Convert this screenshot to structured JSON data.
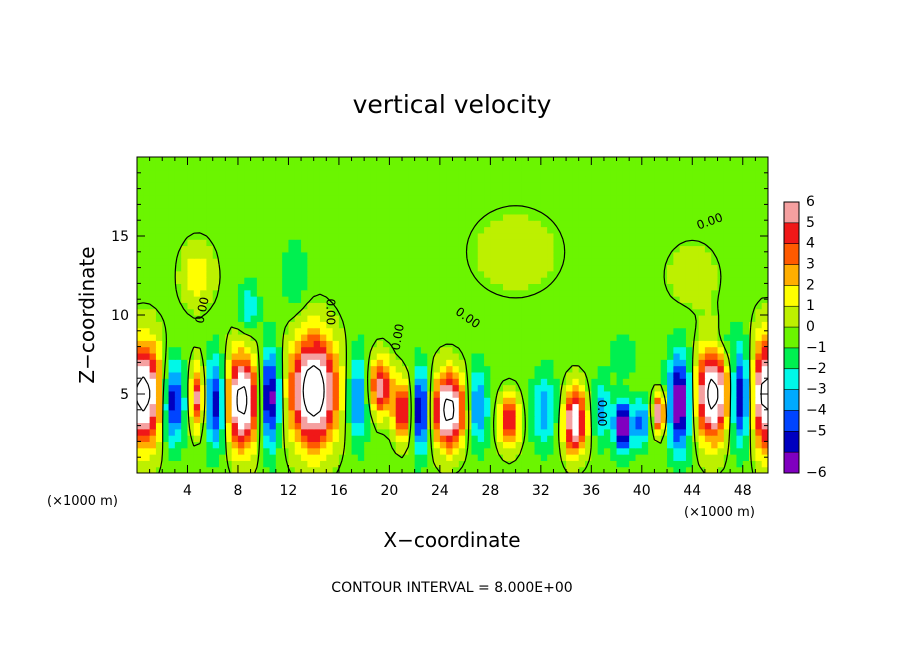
{
  "chart_data": {
    "type": "heatmap",
    "title": "vertical velocity",
    "xlabel": "X−coordinate",
    "ylabel": "Z−coordinate",
    "x_units_left": "(×1000 m)",
    "x_units_right": "(×1000 m)",
    "note": "CONTOUR INTERVAL = 8.000E+00",
    "contour_label": "0.00",
    "xlim": [
      0,
      50
    ],
    "ylim": [
      0,
      20
    ],
    "x_ticks": [
      {
        "value": 4,
        "label": "4"
      },
      {
        "value": 8,
        "label": "8"
      },
      {
        "value": 12,
        "label": "12"
      },
      {
        "value": 16,
        "label": "16"
      },
      {
        "value": 20,
        "label": "20"
      },
      {
        "value": 24,
        "label": "24"
      },
      {
        "value": 28,
        "label": "28"
      },
      {
        "value": 32,
        "label": "32"
      },
      {
        "value": 36,
        "label": "36"
      },
      {
        "value": 40,
        "label": "40"
      },
      {
        "value": 44,
        "label": "44"
      },
      {
        "value": 48,
        "label": "48"
      }
    ],
    "y_ticks": [
      {
        "value": 5,
        "label": "5"
      },
      {
        "value": 10,
        "label": "10"
      },
      {
        "value": 15,
        "label": "15"
      }
    ],
    "colorbar": {
      "levels": [
        {
          "value": 6,
          "label": "6",
          "color": "#f5a0a0"
        },
        {
          "value": 5,
          "label": "5",
          "color": "#f01818"
        },
        {
          "value": 4,
          "label": "4",
          "color": "#ff5a00"
        },
        {
          "value": 3,
          "label": "3",
          "color": "#ffae00"
        },
        {
          "value": 2,
          "label": "2",
          "color": "#ffff00"
        },
        {
          "value": 1,
          "label": "1",
          "color": "#bdf000"
        },
        {
          "value": 0,
          "label": "0",
          "color": "#6bf500"
        },
        {
          "value": -1,
          "label": "−1",
          "color": "#00f050"
        },
        {
          "value": -2,
          "label": "−2",
          "color": "#00f8e8"
        },
        {
          "value": -3,
          "label": "−3",
          "color": "#00aaff"
        },
        {
          "value": -4,
          "label": "−4",
          "color": "#0044ff"
        },
        {
          "value": -5,
          "label": "−5",
          "color": "#0000c0"
        },
        {
          "value": -6,
          "label": "−6",
          "color": "#8000c0"
        }
      ]
    },
    "background_color": "#00f000",
    "features": [
      {
        "x": 0.5,
        "z": 5.0,
        "w": 9,
        "sx": 1.6,
        "sz": 3.2
      },
      {
        "x": 2.8,
        "z": 4.5,
        "w": -6,
        "sx": 0.9,
        "sz": 2.6
      },
      {
        "x": 4.8,
        "z": 4.8,
        "w": 6,
        "sx": 0.6,
        "sz": 2.0
      },
      {
        "x": 6.3,
        "z": 4.5,
        "w": -6,
        "sx": 0.9,
        "sz": 2.8
      },
      {
        "x": 8.3,
        "z": 4.6,
        "w": 9,
        "sx": 1.4,
        "sz": 2.9
      },
      {
        "x": 10.5,
        "z": 4.8,
        "w": -7,
        "sx": 0.8,
        "sz": 3.0
      },
      {
        "x": 14.0,
        "z": 5.2,
        "w": 10,
        "sx": 1.8,
        "sz": 3.4
      },
      {
        "x": 17.5,
        "z": 4.8,
        "w": -4,
        "sx": 0.8,
        "sz": 2.8
      },
      {
        "x": 19.3,
        "z": 5.5,
        "w": 6,
        "sx": 0.9,
        "sz": 1.8
      },
      {
        "x": 21.0,
        "z": 4.0,
        "w": 6,
        "sx": 0.7,
        "sz": 1.8
      },
      {
        "x": 22.5,
        "z": 4.0,
        "w": -6,
        "sx": 0.7,
        "sz": 2.5
      },
      {
        "x": 24.7,
        "z": 4.0,
        "w": 9,
        "sx": 1.3,
        "sz": 2.3
      },
      {
        "x": 27.0,
        "z": 4.2,
        "w": -4,
        "sx": 0.8,
        "sz": 2.4
      },
      {
        "x": 29.5,
        "z": 3.3,
        "w": 6,
        "sx": 0.8,
        "sz": 1.6
      },
      {
        "x": 32.3,
        "z": 4.0,
        "w": -3,
        "sx": 1.0,
        "sz": 2.4
      },
      {
        "x": 34.7,
        "z": 3.3,
        "w": 8,
        "sx": 0.9,
        "sz": 2.0
      },
      {
        "x": 36.8,
        "z": 4.0,
        "w": -3,
        "sx": 0.7,
        "sz": 2.0
      },
      {
        "x": 38.5,
        "z": 3.0,
        "w": -7,
        "sx": 0.7,
        "sz": 1.6
      },
      {
        "x": 40.0,
        "z": 3.2,
        "w": -4,
        "sx": 0.6,
        "sz": 1.5
      },
      {
        "x": 41.4,
        "z": 3.8,
        "w": 7,
        "sx": 0.5,
        "sz": 1.2
      },
      {
        "x": 43.0,
        "z": 4.5,
        "w": -7,
        "sx": 0.9,
        "sz": 3.0
      },
      {
        "x": 45.6,
        "z": 5.0,
        "w": 9,
        "sx": 1.3,
        "sz": 2.9
      },
      {
        "x": 47.8,
        "z": 4.8,
        "w": -6,
        "sx": 0.8,
        "sz": 3.0
      },
      {
        "x": 49.8,
        "z": 5.0,
        "w": 9,
        "sx": 1.1,
        "sz": 3.4
      },
      {
        "x": 4.8,
        "z": 12.5,
        "w": 2.2,
        "sx": 1.3,
        "sz": 2.0
      },
      {
        "x": 8.8,
        "z": 10.5,
        "w": -2.4,
        "sx": 0.8,
        "sz": 1.6
      },
      {
        "x": 12.5,
        "z": 12.5,
        "w": -1.5,
        "sx": 1.0,
        "sz": 2.2
      },
      {
        "x": 30.0,
        "z": 14.0,
        "w": 0.9,
        "sx": 4.0,
        "sz": 3.0
      },
      {
        "x": 44.0,
        "z": 12.5,
        "w": 1.2,
        "sx": 2.0,
        "sz": 2.0
      },
      {
        "x": 38.5,
        "z": 7.5,
        "w": -1.6,
        "sx": 1.0,
        "sz": 1.2
      },
      {
        "x": 46.5,
        "z": 8.2,
        "w": -1.4,
        "sx": 1.2,
        "sz": 1.2
      }
    ]
  }
}
